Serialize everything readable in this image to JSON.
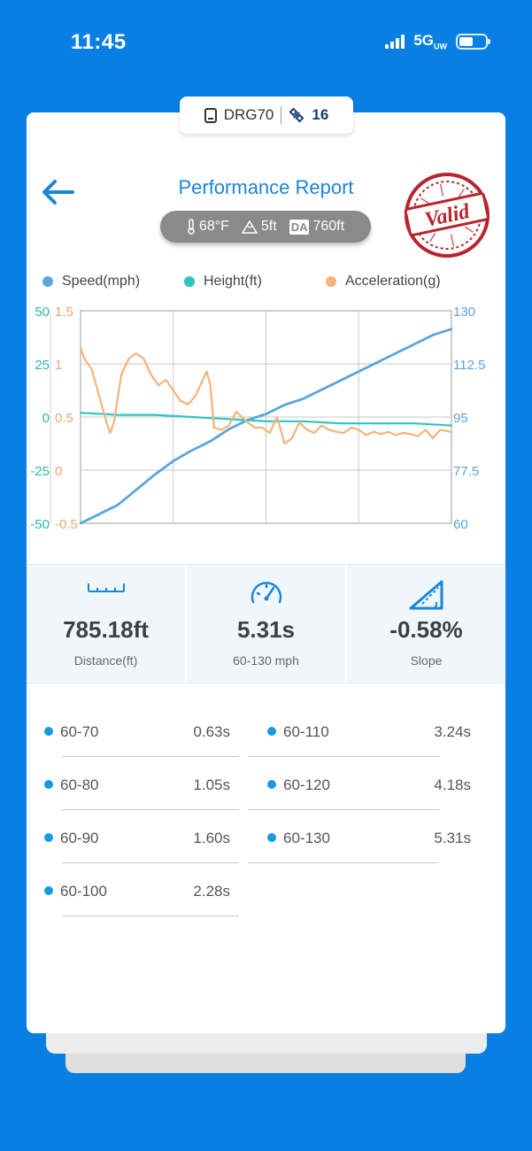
{
  "status": {
    "time": "11:45",
    "network": "5G",
    "network_sub": "UW"
  },
  "device": {
    "name": "DRG70",
    "satellites": "16"
  },
  "header": {
    "title": "Performance Report",
    "stamp": "Valid"
  },
  "conditions": {
    "temperature": "68°F",
    "altitude": "5ft",
    "da_label": "DA",
    "density_altitude": "760ft"
  },
  "legend": [
    {
      "label": "Speed(mph)",
      "color": "#5aa5dd"
    },
    {
      "label": "Height(ft)",
      "color": "#2cc5c0"
    },
    {
      "label": "Acceleration(g)",
      "color": "#f5b27a"
    }
  ],
  "chart_data": {
    "type": "line",
    "axes": {
      "height_left": {
        "ticks": [
          "50",
          "25",
          "0",
          "-25",
          "-50"
        ],
        "range": [
          -50,
          50
        ],
        "color": "#2bb7b2"
      },
      "accel_left": {
        "ticks": [
          "1.5",
          "1",
          "0.5",
          "0",
          "-0.5"
        ],
        "range": [
          -0.5,
          1.5
        ],
        "color": "#f0a46a"
      },
      "speed_right": {
        "ticks": [
          "130",
          "112.5",
          "95",
          "77.5",
          "60"
        ],
        "range": [
          60,
          130
        ],
        "color": "#5aa5dd"
      }
    },
    "x_range": [
      0,
      100
    ],
    "series": [
      {
        "name": "Speed(mph)",
        "color": "#5aa5dd",
        "x": [
          0,
          5,
          10,
          15,
          20,
          25,
          30,
          35,
          40,
          45,
          50,
          55,
          60,
          65,
          70,
          75,
          80,
          85,
          90,
          95,
          100
        ],
        "y": [
          60,
          63,
          66,
          71,
          76,
          80.5,
          84,
          87,
          91,
          94,
          96,
          99,
          101,
          104,
          107,
          110,
          113,
          116,
          119,
          122,
          124
        ]
      },
      {
        "name": "Height(ft)",
        "color": "#2cc5c0",
        "x": [
          0,
          10,
          20,
          30,
          40,
          50,
          60,
          70,
          80,
          90,
          100
        ],
        "y": [
          2,
          1,
          1,
          0,
          -1,
          -2,
          -2,
          -3,
          -3,
          -3,
          -4
        ]
      },
      {
        "name": "Acceleration(g)",
        "color": "#f5b27a",
        "x": [
          0,
          1,
          3,
          5,
          7,
          8,
          9,
          11,
          13,
          15,
          17,
          19,
          21,
          23,
          25,
          27,
          29,
          31,
          34,
          35,
          36,
          38,
          40,
          42,
          45,
          47,
          49,
          51,
          53,
          55,
          57,
          59,
          61,
          63,
          65,
          67,
          69,
          71,
          73,
          75,
          77,
          79,
          81,
          83,
          85,
          87,
          89,
          91,
          93,
          95,
          97,
          100
        ],
        "y": [
          1.15,
          1.05,
          0.95,
          0.7,
          0.45,
          0.35,
          0.45,
          0.9,
          1.05,
          1.1,
          1.05,
          0.9,
          0.8,
          0.85,
          0.75,
          0.65,
          0.62,
          0.7,
          0.93,
          0.8,
          0.4,
          0.38,
          0.42,
          0.55,
          0.45,
          0.4,
          0.4,
          0.35,
          0.5,
          0.25,
          0.3,
          0.45,
          0.38,
          0.35,
          0.42,
          0.38,
          0.36,
          0.35,
          0.4,
          0.38,
          0.33,
          0.36,
          0.34,
          0.36,
          0.33,
          0.35,
          0.34,
          0.32,
          0.38,
          0.3,
          0.38,
          0.36
        ]
      }
    ]
  },
  "stats": [
    {
      "icon": "ruler-icon",
      "value": "785.18ft",
      "label": "Distance(ft)"
    },
    {
      "icon": "speedometer-icon",
      "value": "5.31s",
      "label": "60-130 mph"
    },
    {
      "icon": "slope-icon",
      "value": "-0.58%",
      "label": "Slope"
    }
  ],
  "splits": [
    {
      "range": "60-70",
      "time": "0.63s"
    },
    {
      "range": "60-80",
      "time": "1.05s"
    },
    {
      "range": "60-90",
      "time": "1.60s"
    },
    {
      "range": "60-100",
      "time": "2.28s"
    },
    {
      "range": "60-110",
      "time": "3.24s"
    },
    {
      "range": "60-120",
      "time": "4.18s"
    },
    {
      "range": "60-130",
      "time": "5.31s"
    }
  ]
}
